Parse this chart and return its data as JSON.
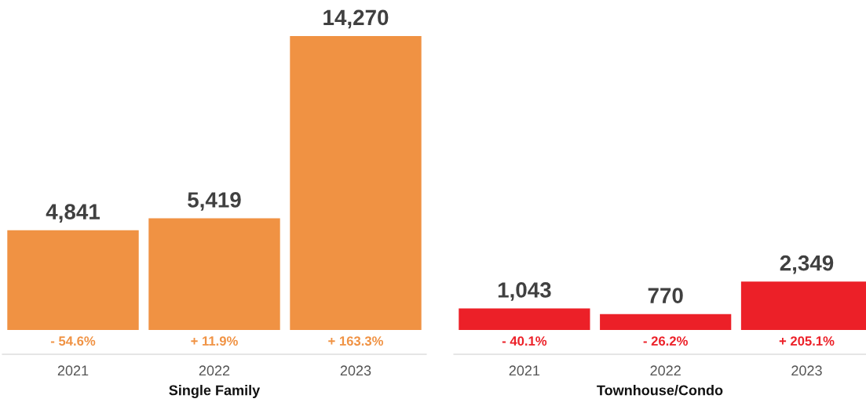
{
  "chart_data": [
    {
      "type": "bar",
      "categories": [
        "2021",
        "2022",
        "2023"
      ],
      "values": [
        4841,
        5419,
        14270
      ],
      "value_labels": [
        "4,841",
        "5,419",
        "14,270"
      ],
      "color": "#f09243",
      "xlabel": "Single Family",
      "annotations": [
        "- 54.6%",
        "+ 11.9%",
        "+ 163.3%"
      ],
      "tick_labels": "x",
      "grid": false
    },
    {
      "type": "bar",
      "categories": [
        "2021",
        "2022",
        "2023"
      ],
      "values": [
        1043,
        770,
        2349
      ],
      "value_labels": [
        "1,043",
        "770",
        "2,349"
      ],
      "color": "#ec2028",
      "xlabel": "Townhouse/Condo",
      "annotations": [
        "- 40.1%",
        "- 26.2%",
        "+ 205.1%"
      ],
      "tick_labels": "x",
      "grid": false
    }
  ]
}
